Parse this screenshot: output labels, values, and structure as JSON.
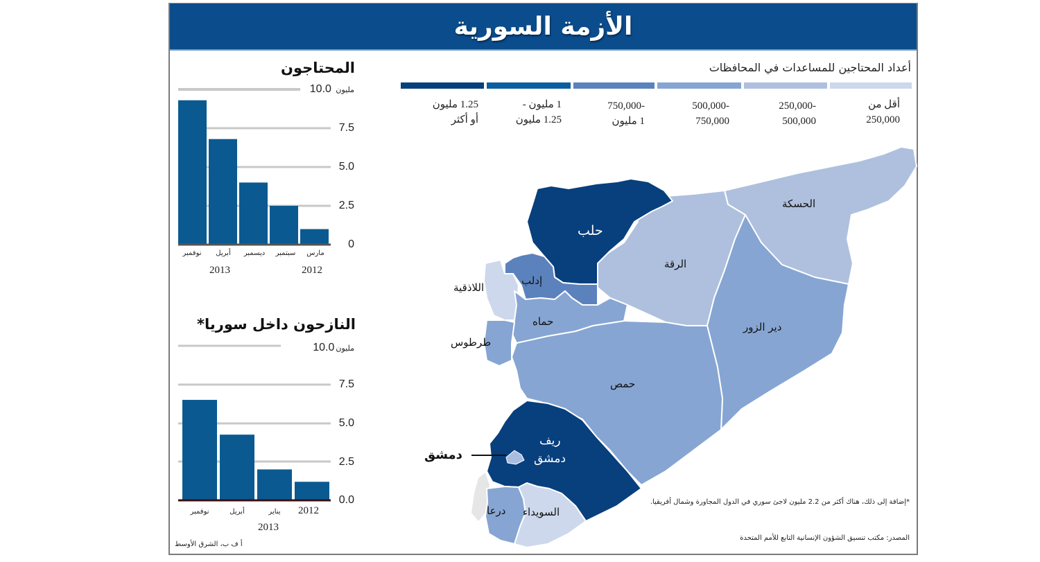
{
  "header": {
    "title": "الأزمة السورية"
  },
  "colors": {
    "header_bg": "#0b4c8c",
    "bar": "#0a5a91",
    "legend": [
      "#083f7d",
      "#0b5fa0",
      "#5b82bd",
      "#86a5d2",
      "#aec0de",
      "#cdd8ec"
    ],
    "gridline": "#c8c8c8"
  },
  "map": {
    "legend_title": "أعداد المحتاجين للمساعدات في المحافظات",
    "legend": [
      {
        "line1": "1.25 مليون",
        "line2": "أو أكثر",
        "color": "#083f7d"
      },
      {
        "line1": "1 مليون -",
        "line2": "1.25 مليون",
        "color": "#0b5fa0"
      },
      {
        "line1": "-750,000",
        "line2": "1 مليون",
        "color": "#5b82bd"
      },
      {
        "line1": "-500,000",
        "line2": "750,000",
        "color": "#86a5d2"
      },
      {
        "line1": "-250,000",
        "line2": "500,000",
        "color": "#aec0de"
      },
      {
        "line1": "أقل من",
        "line2": "250,000",
        "color": "#cdd8ec"
      }
    ],
    "regions": {
      "aleppo": "حلب",
      "hasakah": "الحسكة",
      "raqqa": "الرقة",
      "idlib": "إدلب",
      "latakia": "اللاذقية",
      "hama": "حماه",
      "tartus": "طرطوس",
      "deir_ezzor": "دير الزور",
      "homs": "حمص",
      "rif_dimashq_1": "ريف",
      "rif_dimashq_2": "دمشق",
      "damascus": "دمشق",
      "daraa": "درعا",
      "suwayda": "السويداء"
    },
    "footnote": "*إضافة إلى ذلك، هناك أكثر من 2.2 مليون لاجئ سوري في الدول المجاورة وشمال أفريقيا.",
    "source": "المصدر: مكتب تنسيق الشؤون الإنسانية التابع للأمم المتحدة"
  },
  "chart_data": [
    {
      "type": "bar",
      "title": "المحتاجون",
      "ylabel": "مليون",
      "ylim": [
        0,
        10
      ],
      "yticks": [
        "0",
        "2.5",
        "5.0",
        "7.5",
        "10.0"
      ],
      "categories": [
        "نوفمبر",
        "أبريل",
        "ديسمبر",
        "سبتمبر",
        "مارس"
      ],
      "values": [
        9.3,
        6.8,
        4.0,
        2.5,
        1.0
      ],
      "year_labels": [
        "2013",
        "2012"
      ],
      "grid": true
    },
    {
      "type": "bar",
      "title": "النازحون داخل سوريا*",
      "ylabel": "مليون",
      "ylim": [
        0,
        10
      ],
      "yticks": [
        "0.0",
        "2.5",
        "5.0",
        "7.5",
        "10.0"
      ],
      "categories": [
        "نوفمبر",
        "أبريل",
        "يناير",
        "2012"
      ],
      "values": [
        6.5,
        4.25,
        2.0,
        1.2
      ],
      "year_labels": [
        "2013"
      ],
      "grid": true
    }
  ],
  "credit": "أ ف ب، الشرق الأوسط"
}
